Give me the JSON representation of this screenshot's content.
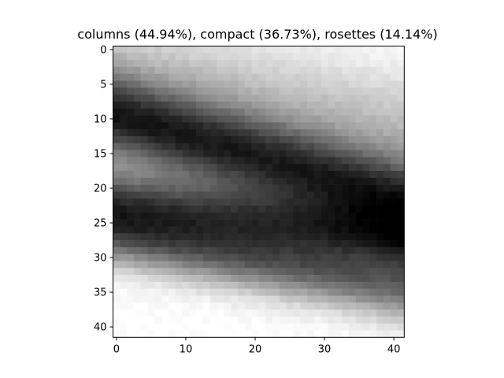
{
  "chart_data": {
    "type": "heatmap",
    "title": "columns (44.94%), compact (36.73%), rosettes (14.14%)",
    "xlabel": "",
    "ylabel": "",
    "colormap": "gray_r",
    "grid": false,
    "origin": "upper",
    "shape": [
      42,
      42
    ],
    "xlim": [
      -0.5,
      41.5
    ],
    "ylim": [
      41.5,
      -0.5
    ],
    "xticks": [
      0,
      10,
      20,
      30,
      40
    ],
    "yticks": [
      0,
      5,
      10,
      15,
      20,
      25,
      30,
      35,
      40
    ],
    "xtick_labels": [
      "0",
      "10",
      "20",
      "30",
      "40"
    ],
    "ytick_labels": [
      "0",
      "5",
      "10",
      "15",
      "20",
      "25",
      "30",
      "35",
      "40"
    ],
    "bands": [
      {
        "row_at_left": 3.5,
        "row_at_right": 12,
        "width_rows": 6.0,
        "peak_intensity": 0.25
      },
      {
        "row_at_left": 10,
        "row_at_right": 21.5,
        "width_rows": 4.2,
        "peak_intensity": 0.78
      },
      {
        "row_at_left": 22,
        "row_at_right": 27.5,
        "width_rows": 3.3,
        "peak_intensity": 0.68
      },
      {
        "row_at_left": 27,
        "row_at_right": 34.5,
        "width_rows": 3.2,
        "peak_intensity": 0.55
      }
    ],
    "value_range": [
      0,
      1
    ]
  }
}
